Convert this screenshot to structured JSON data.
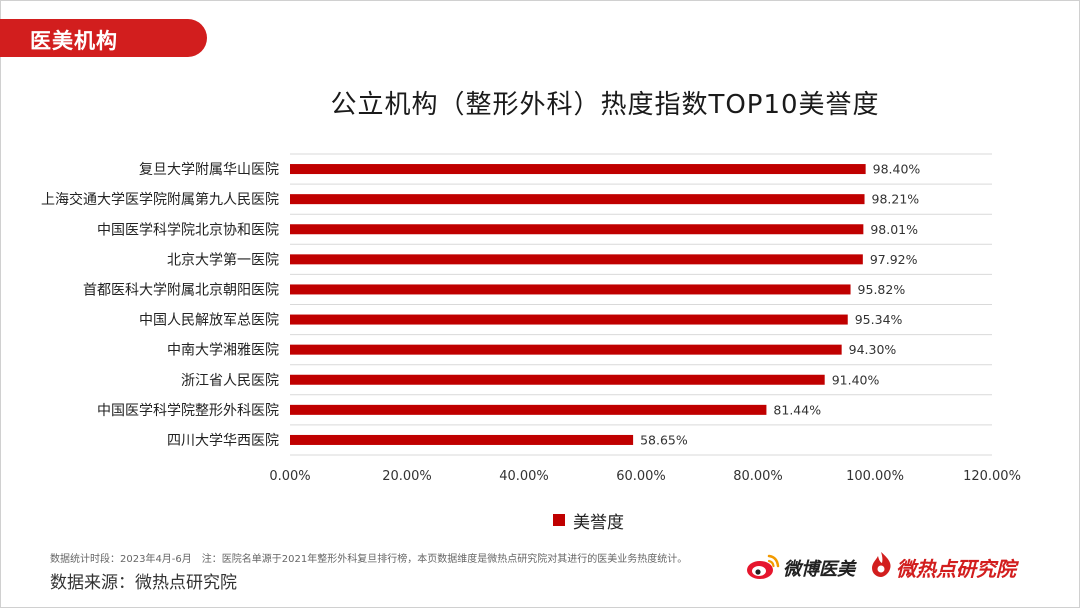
{
  "header": {
    "section_label": "医美机构"
  },
  "colors": {
    "accent": "#d21e1e",
    "bar": "#c00000",
    "grid": "#d9d9d9"
  },
  "chart_data": {
    "type": "bar",
    "orientation": "horizontal",
    "title": "公立机构（整形外科）热度指数TOP10美誉度",
    "categories": [
      "复旦大学附属华山医院",
      "上海交通大学医学院附属第九人民医院",
      "中国医学科学院北京协和医院",
      "北京大学第一医院",
      "首都医科大学附属北京朝阳医院",
      "中国人民解放军总医院",
      "中南大学湘雅医院",
      "浙江省人民医院",
      "中国医学科学院整形外科医院",
      "四川大学华西医院"
    ],
    "series": [
      {
        "name": "美誉度",
        "values": [
          98.4,
          98.21,
          98.01,
          97.92,
          95.82,
          95.34,
          94.3,
          91.4,
          81.44,
          58.65
        ]
      }
    ],
    "data_labels": [
      "98.40%",
      "98.21%",
      "98.01%",
      "97.92%",
      "95.82%",
      "95.34%",
      "94.30%",
      "91.40%",
      "81.44%",
      "58.65%"
    ],
    "xlim": [
      0,
      120
    ],
    "x_ticks": [
      0,
      20,
      40,
      60,
      80,
      100,
      120
    ],
    "x_tick_labels": [
      "0.00%",
      "20.00%",
      "40.00%",
      "60.00%",
      "80.00%",
      "100.00%",
      "120.00%"
    ],
    "grid": true,
    "legend_position": "bottom"
  },
  "footer": {
    "period_note": "数据统计时段：2023年4月-6月",
    "note": "注：医院名单源于2021年整形外科复旦排行榜，本页数据维度是微热点研究院对其进行的医美业务热度统计。",
    "source": "数据来源：微热点研究院"
  },
  "logos": {
    "weibo": {
      "text": "微博医美",
      "icon": "weibo-eye-icon"
    },
    "weiredian": {
      "text": "微热点研究院",
      "icon": "flame-icon"
    }
  }
}
